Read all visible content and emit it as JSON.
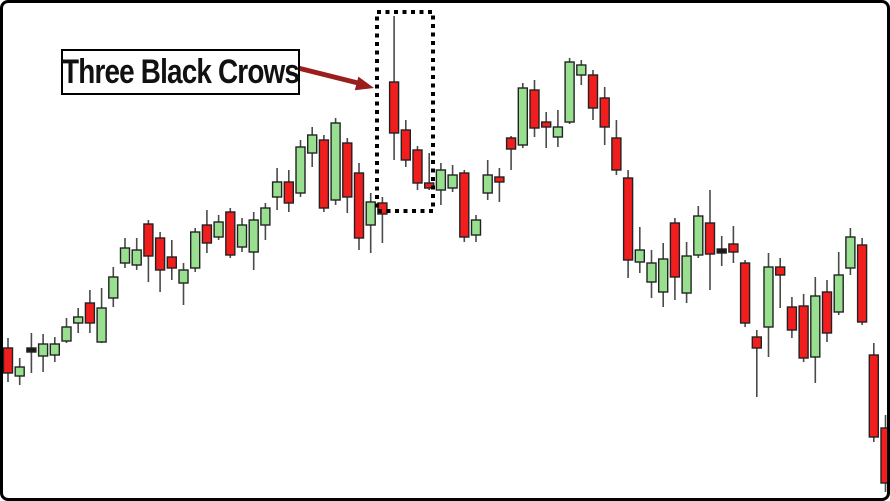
{
  "annotation": {
    "label": "Three Black Crows",
    "highlighted_candles": [
      33,
      34,
      35
    ]
  },
  "colors": {
    "bullish": "#98DF90",
    "bearish": "#F21D1D",
    "doji": "#1A1A1A",
    "candle_border": "#222222",
    "wick": "#4A4A4A",
    "arrow": "#9B1E1E",
    "background": "#FFFFFF",
    "frame": "#000000"
  },
  "chart_data": {
    "type": "candlestick",
    "ylim": [
      0,
      100
    ],
    "x_start": 8,
    "x_step": 11.7,
    "candles": [
      {
        "o": 30.6,
        "h": 32.6,
        "l": 23.8,
        "c": 25.6
      },
      {
        "o": 25.0,
        "h": 28.6,
        "l": 23.2,
        "c": 26.8
      },
      {
        "o": 30.2,
        "h": 33.6,
        "l": 25.6,
        "c": 30.2
      },
      {
        "o": 29.0,
        "h": 33.4,
        "l": 25.8,
        "c": 31.4
      },
      {
        "o": 29.2,
        "h": 32.8,
        "l": 27.8,
        "c": 31.4
      },
      {
        "o": 32.0,
        "h": 36.6,
        "l": 31.6,
        "c": 34.8
      },
      {
        "o": 35.6,
        "h": 38.6,
        "l": 33.6,
        "c": 36.8
      },
      {
        "o": 39.6,
        "h": 42.2,
        "l": 33.6,
        "c": 35.6
      },
      {
        "o": 31.8,
        "h": 42.6,
        "l": 31.6,
        "c": 38.6
      },
      {
        "o": 40.6,
        "h": 46.8,
        "l": 38.8,
        "c": 44.8
      },
      {
        "o": 47.6,
        "h": 52.6,
        "l": 46.6,
        "c": 50.6
      },
      {
        "o": 47.2,
        "h": 52.6,
        "l": 46.2,
        "c": 50.2
      },
      {
        "o": 55.4,
        "h": 56.2,
        "l": 43.8,
        "c": 49.0
      },
      {
        "o": 52.6,
        "h": 53.8,
        "l": 41.8,
        "c": 46.2
      },
      {
        "o": 48.8,
        "h": 52.2,
        "l": 44.2,
        "c": 46.6
      },
      {
        "o": 43.6,
        "h": 47.6,
        "l": 39.2,
        "c": 46.2
      },
      {
        "o": 46.6,
        "h": 54.6,
        "l": 45.8,
        "c": 53.8
      },
      {
        "o": 55.2,
        "h": 58.2,
        "l": 49.6,
        "c": 51.6
      },
      {
        "o": 52.8,
        "h": 57.2,
        "l": 52.2,
        "c": 55.8
      },
      {
        "o": 57.8,
        "h": 58.6,
        "l": 48.6,
        "c": 49.2
      },
      {
        "o": 50.8,
        "h": 56.6,
        "l": 49.8,
        "c": 55.2
      },
      {
        "o": 49.8,
        "h": 57.8,
        "l": 46.2,
        "c": 56.2
      },
      {
        "o": 55.2,
        "h": 59.6,
        "l": 52.2,
        "c": 58.6
      },
      {
        "o": 60.8,
        "h": 66.6,
        "l": 58.2,
        "c": 63.8
      },
      {
        "o": 63.8,
        "h": 66.2,
        "l": 57.8,
        "c": 59.6
      },
      {
        "o": 61.6,
        "h": 72.2,
        "l": 60.8,
        "c": 70.8
      },
      {
        "o": 69.6,
        "h": 74.8,
        "l": 66.8,
        "c": 73.2
      },
      {
        "o": 72.2,
        "h": 73.2,
        "l": 57.8,
        "c": 58.6
      },
      {
        "o": 60.2,
        "h": 76.6,
        "l": 59.2,
        "c": 75.6
      },
      {
        "o": 71.6,
        "h": 72.6,
        "l": 57.6,
        "c": 60.8
      },
      {
        "o": 65.6,
        "h": 67.6,
        "l": 50.2,
        "c": 52.6
      },
      {
        "o": 55.2,
        "h": 61.6,
        "l": 49.6,
        "c": 59.8
      },
      {
        "o": 59.6,
        "h": 60.8,
        "l": 51.6,
        "c": 57.4
      },
      {
        "o": 83.8,
        "h": 97.0,
        "l": 68.2,
        "c": 73.6
      },
      {
        "o": 74.2,
        "h": 76.2,
        "l": 66.8,
        "c": 68.2
      },
      {
        "o": 70.2,
        "h": 71.0,
        "l": 62.2,
        "c": 63.6
      },
      {
        "o": 63.6,
        "h": 69.6,
        "l": 62.2,
        "c": 62.6
      },
      {
        "o": 62.2,
        "h": 67.6,
        "l": 59.2,
        "c": 66.2
      },
      {
        "o": 62.6,
        "h": 67.2,
        "l": 61.8,
        "c": 65.2
      },
      {
        "o": 65.6,
        "h": 66.2,
        "l": 51.8,
        "c": 52.8
      },
      {
        "o": 53.2,
        "h": 57.2,
        "l": 51.8,
        "c": 56.2
      },
      {
        "o": 61.6,
        "h": 68.2,
        "l": 60.2,
        "c": 65.2
      },
      {
        "o": 64.8,
        "h": 66.6,
        "l": 59.8,
        "c": 63.8
      },
      {
        "o": 72.6,
        "h": 73.0,
        "l": 66.2,
        "c": 70.4
      },
      {
        "o": 71.2,
        "h": 83.6,
        "l": 70.6,
        "c": 82.6
      },
      {
        "o": 82.2,
        "h": 84.2,
        "l": 72.8,
        "c": 74.6
      },
      {
        "o": 75.8,
        "h": 77.8,
        "l": 70.6,
        "c": 74.8
      },
      {
        "o": 72.8,
        "h": 78.2,
        "l": 70.8,
        "c": 74.8
      },
      {
        "o": 75.8,
        "h": 88.6,
        "l": 75.4,
        "c": 87.8
      },
      {
        "o": 85.2,
        "h": 88.2,
        "l": 83.2,
        "c": 87.2
      },
      {
        "o": 85.2,
        "h": 86.2,
        "l": 76.2,
        "c": 78.6
      },
      {
        "o": 80.6,
        "h": 82.8,
        "l": 71.2,
        "c": 74.8
      },
      {
        "o": 72.6,
        "h": 76.2,
        "l": 65.2,
        "c": 66.2
      },
      {
        "o": 64.6,
        "h": 66.2,
        "l": 44.6,
        "c": 48.2
      },
      {
        "o": 47.8,
        "h": 54.8,
        "l": 45.6,
        "c": 50.2
      },
      {
        "o": 43.8,
        "h": 50.2,
        "l": 40.6,
        "c": 47.6
      },
      {
        "o": 41.8,
        "h": 51.6,
        "l": 38.8,
        "c": 48.4
      },
      {
        "o": 55.6,
        "h": 56.6,
        "l": 40.2,
        "c": 44.8
      },
      {
        "o": 41.6,
        "h": 51.8,
        "l": 39.6,
        "c": 49.0
      },
      {
        "o": 49.2,
        "h": 59.0,
        "l": 48.6,
        "c": 57.0
      },
      {
        "o": 55.6,
        "h": 62.2,
        "l": 42.2,
        "c": 49.4
      },
      {
        "o": 50.0,
        "h": 53.0,
        "l": 47.0,
        "c": 50.0
      },
      {
        "o": 51.4,
        "h": 55.0,
        "l": 47.6,
        "c": 49.8
      },
      {
        "o": 47.6,
        "h": 48.2,
        "l": 34.8,
        "c": 35.6
      },
      {
        "o": 32.8,
        "h": 34.2,
        "l": 20.8,
        "c": 30.6
      },
      {
        "o": 34.8,
        "h": 49.6,
        "l": 28.8,
        "c": 46.8
      },
      {
        "o": 46.8,
        "h": 48.6,
        "l": 38.6,
        "c": 45.2
      },
      {
        "o": 38.8,
        "h": 40.8,
        "l": 32.6,
        "c": 34.2
      },
      {
        "o": 39.0,
        "h": 41.4,
        "l": 27.8,
        "c": 28.6
      },
      {
        "o": 28.8,
        "h": 44.8,
        "l": 23.6,
        "c": 41.0
      },
      {
        "o": 41.8,
        "h": 44.2,
        "l": 31.8,
        "c": 33.6
      },
      {
        "o": 37.8,
        "h": 49.8,
        "l": 37.2,
        "c": 45.2
      },
      {
        "o": 46.6,
        "h": 54.6,
        "l": 45.2,
        "c": 52.8
      },
      {
        "o": 51.2,
        "h": 52.6,
        "l": 35.2,
        "c": 35.8
      },
      {
        "o": 29.2,
        "h": 31.6,
        "l": 11.8,
        "c": 12.8
      },
      {
        "o": 14.6,
        "h": 17.2,
        "l": 1.8,
        "c": 3.6
      }
    ]
  }
}
